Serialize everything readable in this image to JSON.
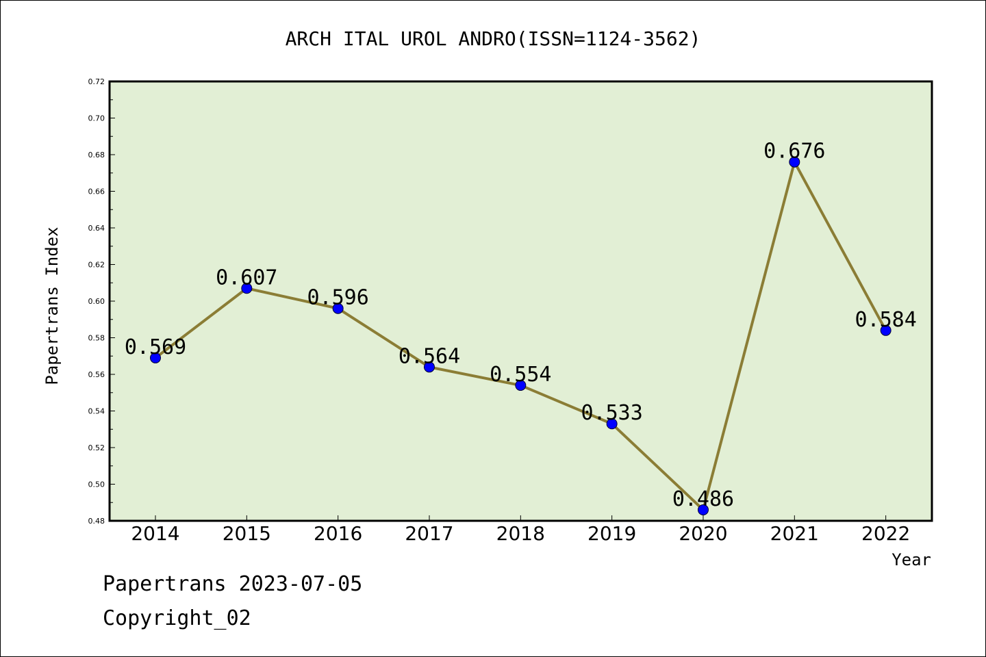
{
  "chart_data": {
    "type": "line",
    "title": "ARCH ITAL UROL ANDRO(ISSN=1124-3562)",
    "xlabel": "Year",
    "ylabel": "Papertrans Index",
    "categories": [
      "2014",
      "2015",
      "2016",
      "2017",
      "2018",
      "2019",
      "2020",
      "2021",
      "2022"
    ],
    "series": [
      {
        "values": [
          0.569,
          0.607,
          0.596,
          0.564,
          0.554,
          0.533,
          0.486,
          0.676,
          0.584
        ],
        "data_labels": [
          "0.569",
          "0.607",
          "0.596",
          "0.564",
          "0.554",
          "0.533",
          "0.486",
          "0.676",
          "0.584"
        ]
      }
    ],
    "ylim": [
      0.48,
      0.72
    ],
    "yticks": [
      "0.48",
      "0.50",
      "0.52",
      "0.54",
      "0.56",
      "0.58",
      "0.60",
      "0.62",
      "0.64",
      "0.66",
      "0.68",
      "0.70",
      "0.72"
    ],
    "grid": false,
    "legend": "none",
    "colors": {
      "plot_background": "#e2efd5",
      "line": "#8b7d35",
      "marker": "#0000ff",
      "axis": "#000000"
    }
  },
  "footer": {
    "date_line": "Papertrans 2023-07-05",
    "copyright": "Copyright_02"
  }
}
